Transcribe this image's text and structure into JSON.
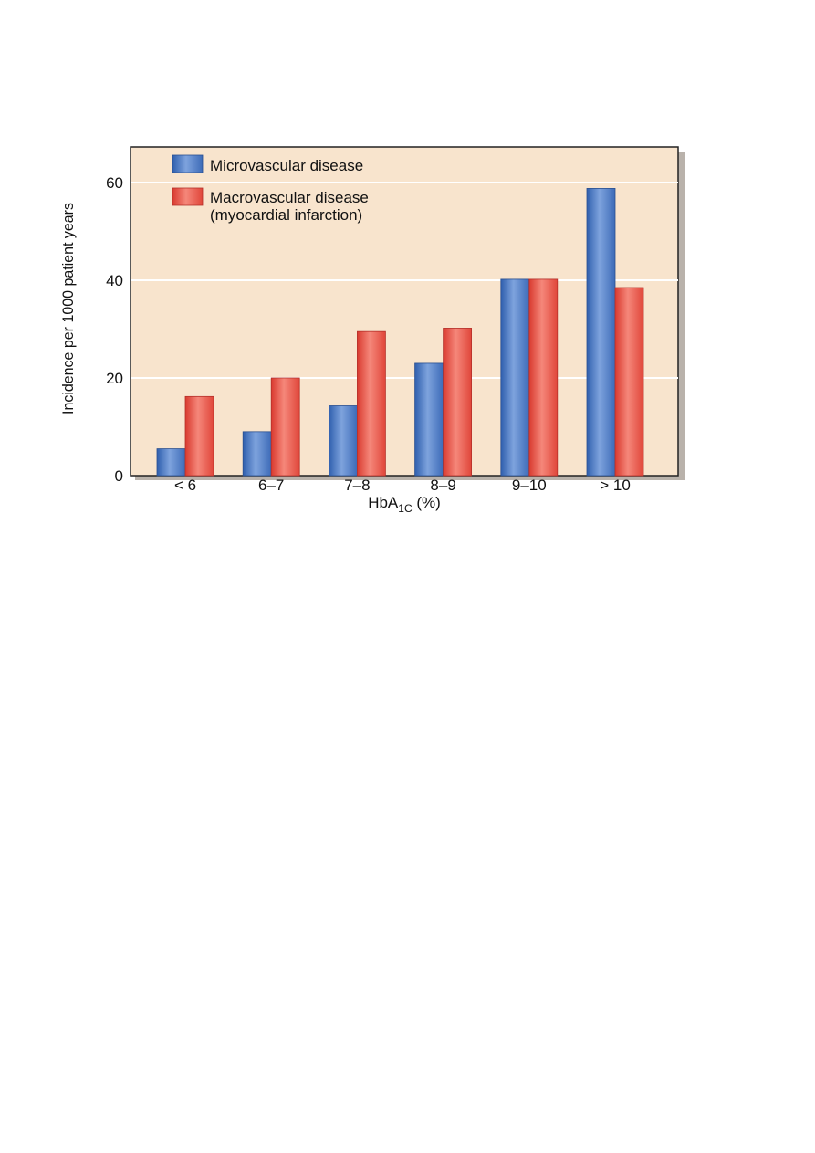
{
  "chart_data": {
    "type": "bar",
    "categories": [
      "< 6",
      "6–7",
      "7–8",
      "8–9",
      "9–10",
      "> 10"
    ],
    "series": [
      {
        "name": "Microvascular disease",
        "values": [
          5.5,
          9,
          14.3,
          23,
          40.2,
          58.8
        ],
        "color": "#4a7cc4"
      },
      {
        "name": "Macrovascular disease (myocardial infarction)",
        "name_lines": [
          "Macrovascular disease",
          "(myocardial infarction)"
        ],
        "values": [
          16.2,
          20,
          29.5,
          30.2,
          40.2,
          38.5
        ],
        "color": "#e8493e"
      }
    ],
    "xlabel_main": "HbA",
    "xlabel_sub": "1C",
    "xlabel_tail": " (%)",
    "ylabel": "Incidence per 1000 patient years",
    "ylim": [
      0,
      60
    ],
    "yticks": [
      0,
      20,
      40,
      60
    ],
    "grid": true,
    "legend_position": "top-left",
    "plot_background": "#f8e4cd"
  }
}
